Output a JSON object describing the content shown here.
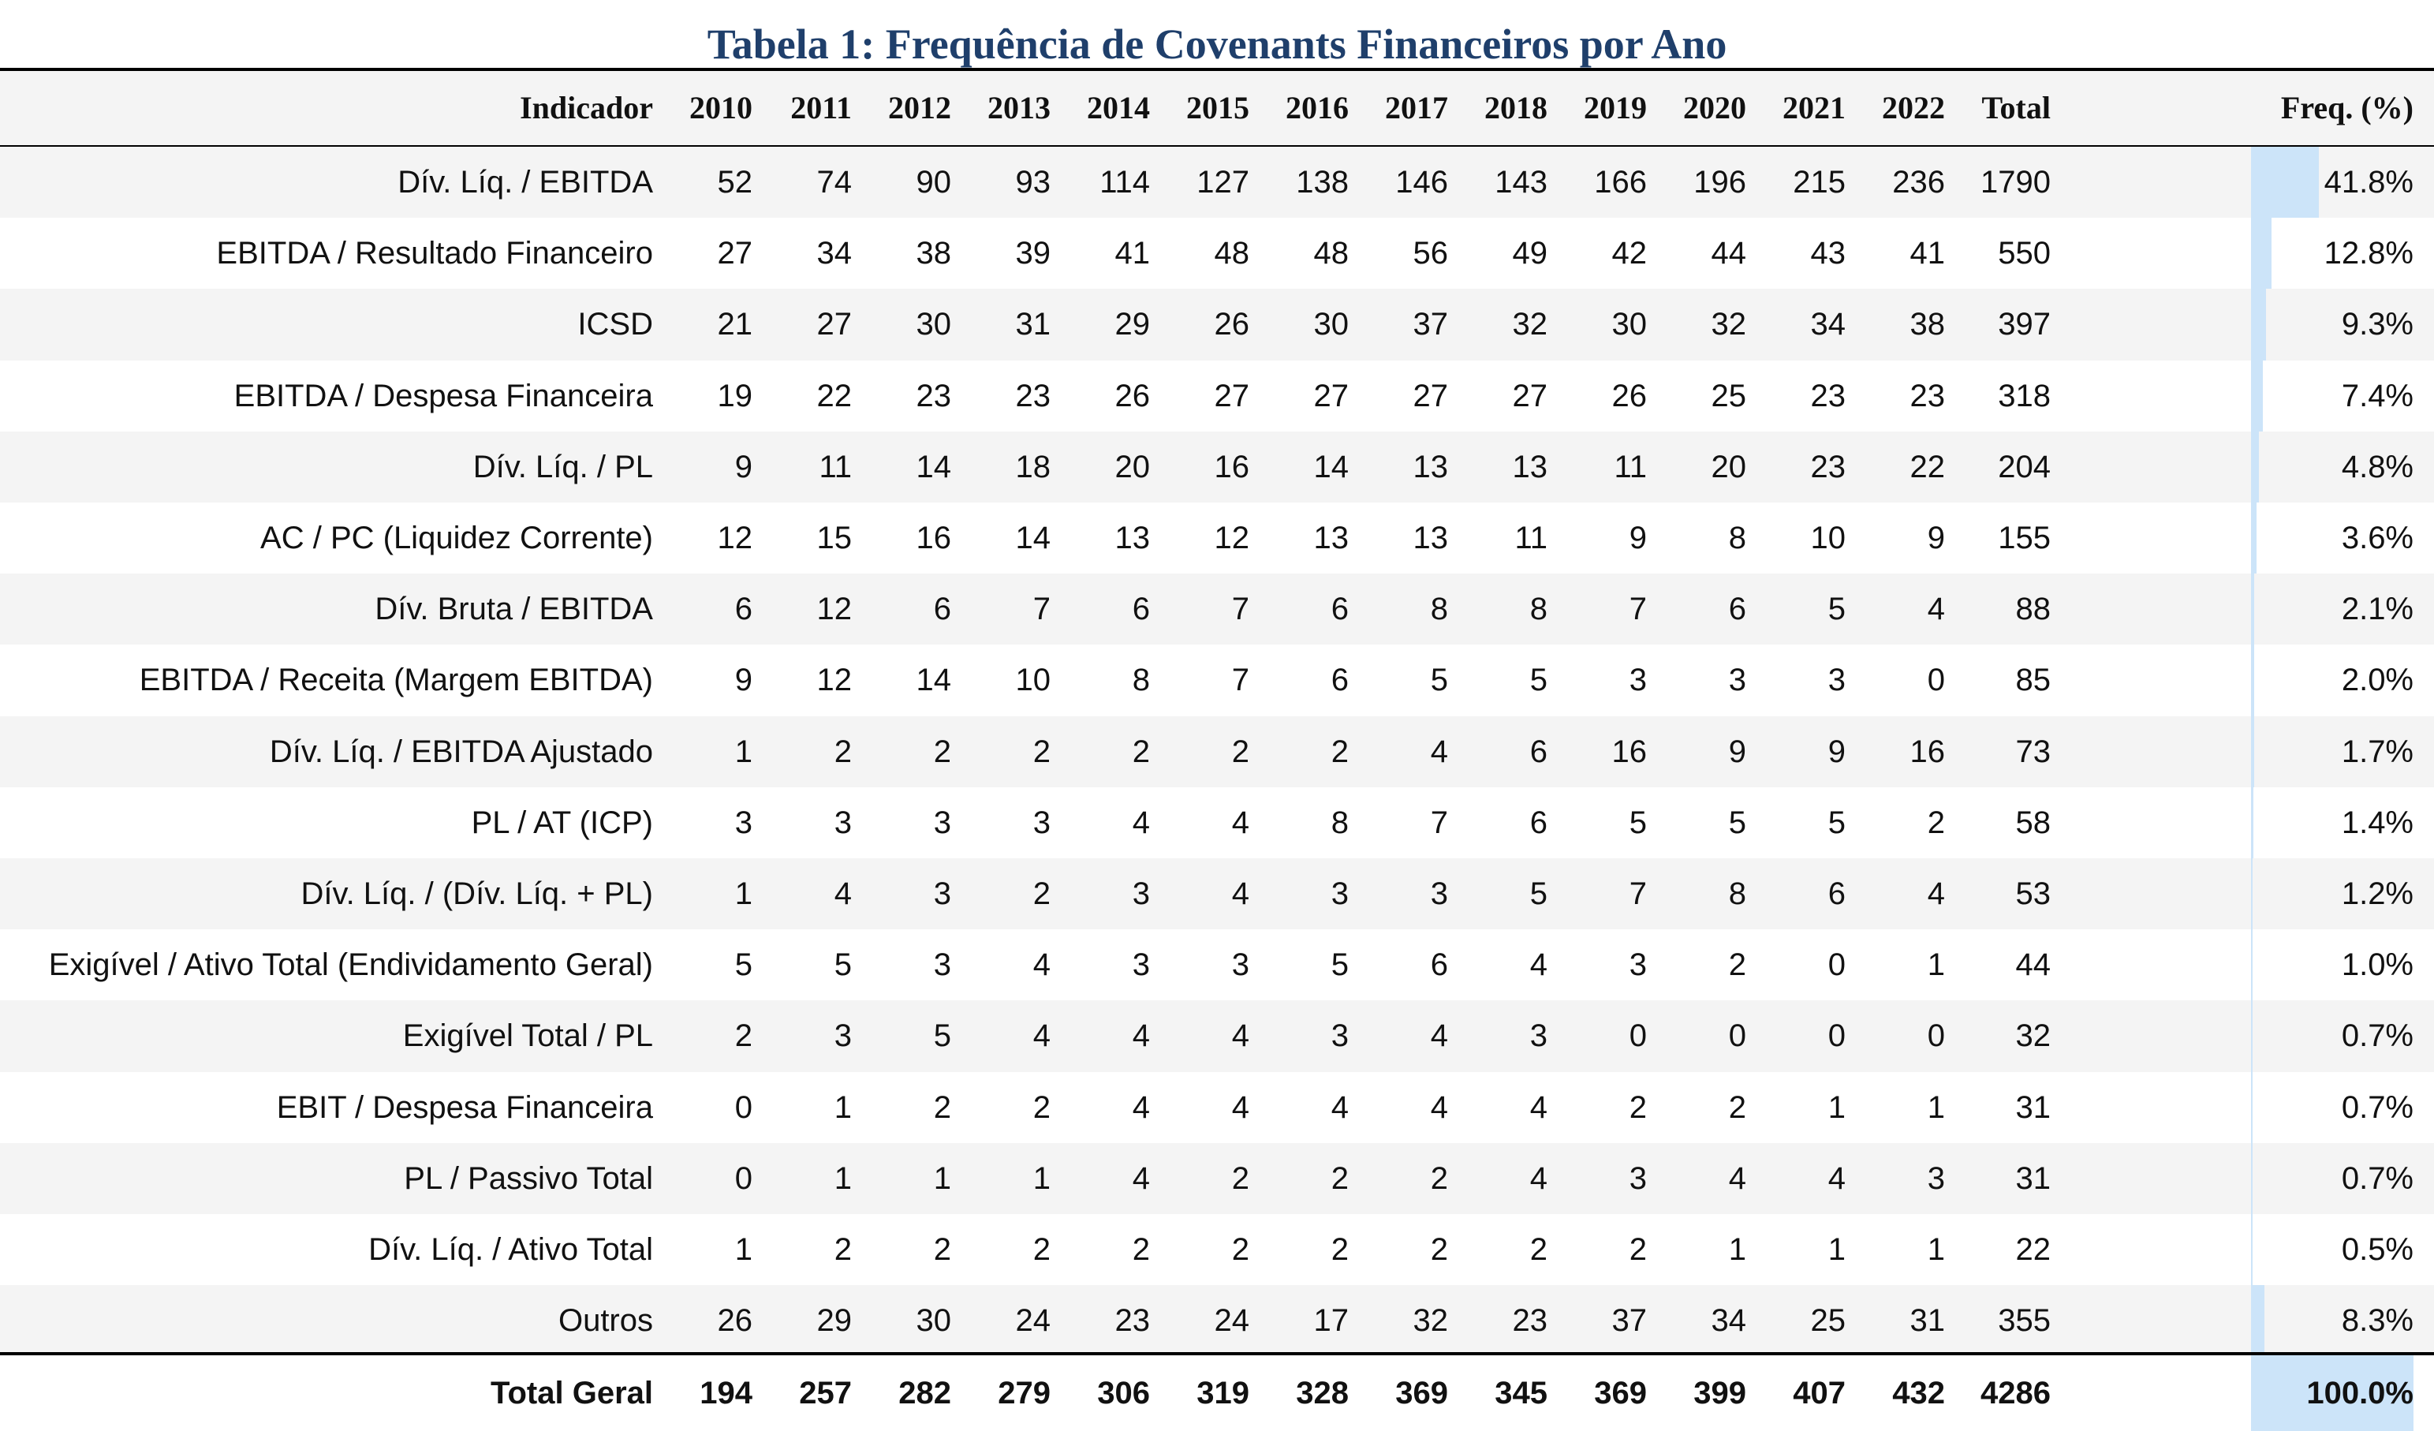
{
  "title": "Tabela 1: Frequência de Covenants Financeiros por Ano",
  "colors": {
    "title": "#1f3f6b",
    "stripe": "#f4f4f4",
    "bar": "#cce4f9"
  },
  "chart_data": {
    "type": "table",
    "headers": {
      "indicator": "Indicador",
      "years": [
        "2010",
        "2011",
        "2012",
        "2013",
        "2014",
        "2015",
        "2016",
        "2017",
        "2018",
        "2019",
        "2020",
        "2021",
        "2022"
      ],
      "total": "Total",
      "freq": "Freq. (%)"
    },
    "rows": [
      {
        "label": "Dív. Líq. / EBITDA",
        "values": [
          "52",
          "74",
          "90",
          "93",
          "114",
          "127",
          "138",
          "146",
          "143",
          "166",
          "196",
          "215",
          "236"
        ],
        "total": "1790",
        "freq": "41.8%",
        "freq_value": 41.8
      },
      {
        "label": "EBITDA / Resultado Financeiro",
        "values": [
          "27",
          "34",
          "38",
          "39",
          "41",
          "48",
          "48",
          "56",
          "49",
          "42",
          "44",
          "43",
          "41"
        ],
        "total": "550",
        "freq": "12.8%",
        "freq_value": 12.8
      },
      {
        "label": "ICSD",
        "values": [
          "21",
          "27",
          "30",
          "31",
          "29",
          "26",
          "30",
          "37",
          "32",
          "30",
          "32",
          "34",
          "38"
        ],
        "total": "397",
        "freq": "9.3%",
        "freq_value": 9.3
      },
      {
        "label": "EBITDA / Despesa Financeira",
        "values": [
          "19",
          "22",
          "23",
          "23",
          "26",
          "27",
          "27",
          "27",
          "27",
          "26",
          "25",
          "23",
          "23"
        ],
        "total": "318",
        "freq": "7.4%",
        "freq_value": 7.4
      },
      {
        "label": "Dív. Líq. / PL",
        "values": [
          "9",
          "11",
          "14",
          "18",
          "20",
          "16",
          "14",
          "13",
          "13",
          "11",
          "20",
          "23",
          "22"
        ],
        "total": "204",
        "freq": "4.8%",
        "freq_value": 4.8
      },
      {
        "label": "AC / PC (Liquidez Corrente)",
        "values": [
          "12",
          "15",
          "16",
          "14",
          "13",
          "12",
          "13",
          "13",
          "11",
          "9",
          "8",
          "10",
          "9"
        ],
        "total": "155",
        "freq": "3.6%",
        "freq_value": 3.6
      },
      {
        "label": "Dív. Bruta / EBITDA",
        "values": [
          "6",
          "12",
          "6",
          "7",
          "6",
          "7",
          "6",
          "8",
          "8",
          "7",
          "6",
          "5",
          "4"
        ],
        "total": "88",
        "freq": "2.1%",
        "freq_value": 2.1
      },
      {
        "label": "EBITDA / Receita (Margem EBITDA)",
        "values": [
          "9",
          "12",
          "14",
          "10",
          "8",
          "7",
          "6",
          "5",
          "5",
          "3",
          "3",
          "3",
          "0"
        ],
        "total": "85",
        "freq": "2.0%",
        "freq_value": 2.0
      },
      {
        "label": "Dív. Líq. / EBITDA Ajustado",
        "values": [
          "1",
          "2",
          "2",
          "2",
          "2",
          "2",
          "2",
          "4",
          "6",
          "16",
          "9",
          "9",
          "16"
        ],
        "total": "73",
        "freq": "1.7%",
        "freq_value": 1.7
      },
      {
        "label": "PL / AT (ICP)",
        "values": [
          "3",
          "3",
          "3",
          "3",
          "4",
          "4",
          "8",
          "7",
          "6",
          "5",
          "5",
          "5",
          "2"
        ],
        "total": "58",
        "freq": "1.4%",
        "freq_value": 1.4
      },
      {
        "label": "Dív. Líq. / (Dív. Líq. + PL)",
        "values": [
          "1",
          "4",
          "3",
          "2",
          "3",
          "4",
          "3",
          "3",
          "5",
          "7",
          "8",
          "6",
          "4"
        ],
        "total": "53",
        "freq": "1.2%",
        "freq_value": 1.2
      },
      {
        "label": "Exigível / Ativo Total (Endividamento Geral)",
        "values": [
          "5",
          "5",
          "3",
          "4",
          "3",
          "3",
          "5",
          "6",
          "4",
          "3",
          "2",
          "0",
          "1"
        ],
        "total": "44",
        "freq": "1.0%",
        "freq_value": 1.0
      },
      {
        "label": "Exigível Total / PL",
        "values": [
          "2",
          "3",
          "5",
          "4",
          "4",
          "4",
          "3",
          "4",
          "3",
          "0",
          "0",
          "0",
          "0"
        ],
        "total": "32",
        "freq": "0.7%",
        "freq_value": 0.7
      },
      {
        "label": "EBIT / Despesa Financeira",
        "values": [
          "0",
          "1",
          "2",
          "2",
          "4",
          "4",
          "4",
          "4",
          "4",
          "2",
          "2",
          "1",
          "1"
        ],
        "total": "31",
        "freq": "0.7%",
        "freq_value": 0.7
      },
      {
        "label": "PL / Passivo Total",
        "values": [
          "0",
          "1",
          "1",
          "1",
          "4",
          "2",
          "2",
          "2",
          "4",
          "3",
          "4",
          "4",
          "3"
        ],
        "total": "31",
        "freq": "0.7%",
        "freq_value": 0.7
      },
      {
        "label": "Dív. Líq. / Ativo Total",
        "values": [
          "1",
          "2",
          "2",
          "2",
          "2",
          "2",
          "2",
          "2",
          "2",
          "2",
          "1",
          "1",
          "1"
        ],
        "total": "22",
        "freq": "0.5%",
        "freq_value": 0.5
      },
      {
        "label": "Outros",
        "values": [
          "26",
          "29",
          "30",
          "24",
          "23",
          "24",
          "17",
          "32",
          "23",
          "37",
          "34",
          "25",
          "31"
        ],
        "total": "355",
        "freq": "8.3%",
        "freq_value": 8.3
      }
    ],
    "total_row": {
      "label": "Total Geral",
      "values": [
        "194",
        "257",
        "282",
        "279",
        "306",
        "319",
        "328",
        "369",
        "345",
        "369",
        "399",
        "407",
        "432"
      ],
      "total": "4286",
      "freq": "100.0%",
      "freq_value": 100.0
    }
  }
}
